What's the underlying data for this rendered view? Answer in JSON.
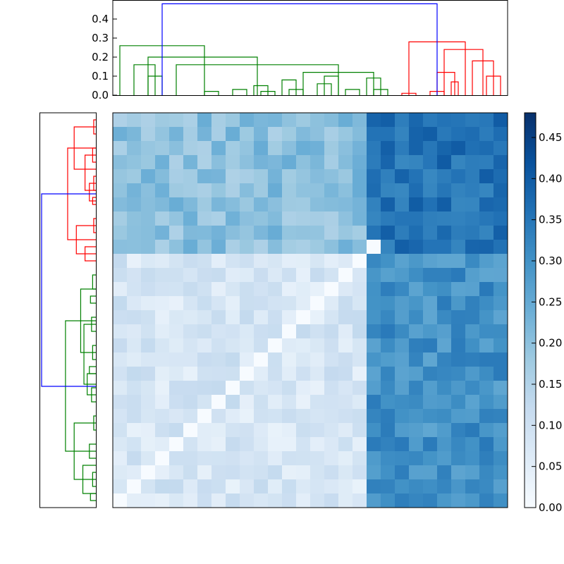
{
  "colors": {
    "cluster_a": "#ff0000",
    "cluster_b": "#008000",
    "link": "#0000ff",
    "frame": "#000000",
    "cmap_low": "#f7fbff",
    "cmap_high": "#08306b"
  },
  "chart_data": [
    {
      "type": "dendrogram",
      "orientation": "top",
      "ylim": [
        0,
        0.5
      ],
      "yticks": [
        "0.0",
        "0.1",
        "0.2",
        "0.3",
        "0.4"
      ],
      "ytick_values": [
        0,
        0.1,
        0.2,
        0.3,
        0.4
      ],
      "leaves": 28,
      "links": [
        {
          "a": 6,
          "b": 7,
          "h": 0.02,
          "c": "g"
        },
        {
          "a": 8,
          "b": 9,
          "h": 0.03,
          "c": "g"
        },
        {
          "a": 10,
          "b": 11,
          "h": 0.02,
          "c": "g"
        },
        {
          "a": 12,
          "b": 13,
          "h": 0.03,
          "c": "g"
        },
        {
          "a": 9.5,
          "b": 10.5,
          "h": 0.05,
          "c": "g"
        },
        {
          "a": 14,
          "b": 15,
          "h": 0.06,
          "c": "g"
        },
        {
          "a": 11.5,
          "b": 12.5,
          "h": 0.08,
          "c": "g"
        },
        {
          "a": 14.5,
          "b": 15.5,
          "h": 0.1,
          "c": "g"
        },
        {
          "a": 16,
          "b": 17,
          "h": 0.03,
          "c": "g"
        },
        {
          "a": 18,
          "b": 19,
          "h": 0.03,
          "c": "g"
        },
        {
          "a": 17.5,
          "b": 18.5,
          "h": 0.09,
          "c": "g"
        },
        {
          "a": 13,
          "b": 18,
          "h": 0.12,
          "c": "g"
        },
        {
          "a": 4,
          "b": 15.5,
          "h": 0.16,
          "c": "g"
        },
        {
          "a": 2,
          "b": 3,
          "h": 0.1,
          "c": "g"
        },
        {
          "a": 1,
          "b": 2.5,
          "h": 0.16,
          "c": "g"
        },
        {
          "a": 2,
          "b": 9.75,
          "h": 0.2,
          "c": "g"
        },
        {
          "a": 0,
          "b": 6,
          "h": 0.26,
          "c": "g"
        },
        {
          "a": 20,
          "b": 21,
          "h": 0.01,
          "c": "r"
        },
        {
          "a": 22,
          "b": 23,
          "h": 0.02,
          "c": "r"
        },
        {
          "a": 23.5,
          "b": 24,
          "h": 0.07,
          "c": "r"
        },
        {
          "a": 22.5,
          "b": 23.75,
          "h": 0.12,
          "c": "r"
        },
        {
          "a": 26,
          "b": 27,
          "h": 0.1,
          "c": "r"
        },
        {
          "a": 25,
          "b": 26.5,
          "h": 0.18,
          "c": "r"
        },
        {
          "a": 23,
          "b": 25.75,
          "h": 0.24,
          "c": "r"
        },
        {
          "a": 20.5,
          "b": 24.5,
          "h": 0.28,
          "c": "r"
        },
        {
          "a": 3,
          "b": 22.5,
          "h": 0.48,
          "c": "b"
        }
      ]
    },
    {
      "type": "dendrogram",
      "orientation": "left",
      "leaves": 28,
      "links": [
        {
          "a": 0,
          "b": 1,
          "h": 0.02,
          "c": "r"
        },
        {
          "a": 2,
          "b": 3,
          "h": 0.03,
          "c": "r"
        },
        {
          "a": 4,
          "b": 5,
          "h": 0.02,
          "c": "r"
        },
        {
          "a": 5.5,
          "b": 6,
          "h": 0.03,
          "c": "r"
        },
        {
          "a": 4.5,
          "b": 5.75,
          "h": 0.06,
          "c": "r"
        },
        {
          "a": 2.5,
          "b": 5,
          "h": 0.1,
          "c": "r"
        },
        {
          "a": 0.5,
          "b": 3.5,
          "h": 0.2,
          "c": "r"
        },
        {
          "a": 7,
          "b": 8,
          "h": 0.02,
          "c": "r"
        },
        {
          "a": 9,
          "b": 10,
          "h": 0.1,
          "c": "r"
        },
        {
          "a": 7.5,
          "b": 9.5,
          "h": 0.18,
          "c": "r"
        },
        {
          "a": 2,
          "b": 8.5,
          "h": 0.26,
          "c": "r"
        },
        {
          "a": 11,
          "b": 12,
          "h": 0.03,
          "c": "g"
        },
        {
          "a": 12.5,
          "b": 13,
          "h": 0.05,
          "c": "g"
        },
        {
          "a": 14,
          "b": 15,
          "h": 0.04,
          "c": "g"
        },
        {
          "a": 16,
          "b": 17,
          "h": 0.03,
          "c": "g"
        },
        {
          "a": 17.5,
          "b": 18,
          "h": 0.06,
          "c": "g"
        },
        {
          "a": 19,
          "b": 20,
          "h": 0.04,
          "c": "g"
        },
        {
          "a": 18,
          "b": 19.5,
          "h": 0.08,
          "c": "g"
        },
        {
          "a": 14.5,
          "b": 18.75,
          "h": 0.11,
          "c": "g"
        },
        {
          "a": 12,
          "b": 16.5,
          "h": 0.14,
          "c": "g"
        },
        {
          "a": 21,
          "b": 22,
          "h": 0.02,
          "c": "g"
        },
        {
          "a": 23,
          "b": 24,
          "h": 0.06,
          "c": "g"
        },
        {
          "a": 25,
          "b": 26,
          "h": 0.03,
          "c": "g"
        },
        {
          "a": 26.5,
          "b": 27,
          "h": 0.05,
          "c": "g"
        },
        {
          "a": 24.5,
          "b": 26.5,
          "h": 0.12,
          "c": "g"
        },
        {
          "a": 21.5,
          "b": 25.5,
          "h": 0.2,
          "c": "g"
        },
        {
          "a": 14.25,
          "b": 23.5,
          "h": 0.28,
          "c": "g"
        },
        {
          "a": 5.25,
          "b": 18.9,
          "h": 0.5,
          "c": "b"
        }
      ]
    },
    {
      "type": "heatmap",
      "rows": 28,
      "cols": 28,
      "colormap": "Blues",
      "vmin": 0,
      "vmax": 0.48,
      "row_groups": [
        10,
        18
      ],
      "col_groups": [
        18,
        10
      ],
      "block_means": [
        [
          0.2,
          0.36
        ],
        [
          0.08,
          0.3
        ]
      ],
      "zero_diagonal_rows": [
        9,
        10,
        11,
        12,
        13,
        14,
        15,
        16,
        17,
        18,
        19,
        20,
        21,
        22,
        23,
        24,
        25,
        26,
        27
      ],
      "colorbar_ticks": [
        "0.00",
        "0.05",
        "0.10",
        "0.15",
        "0.20",
        "0.25",
        "0.30",
        "0.35",
        "0.40",
        "0.45"
      ],
      "colorbar_tick_values": [
        0,
        0.05,
        0.1,
        0.15,
        0.2,
        0.25,
        0.3,
        0.35,
        0.4,
        0.45
      ]
    }
  ]
}
